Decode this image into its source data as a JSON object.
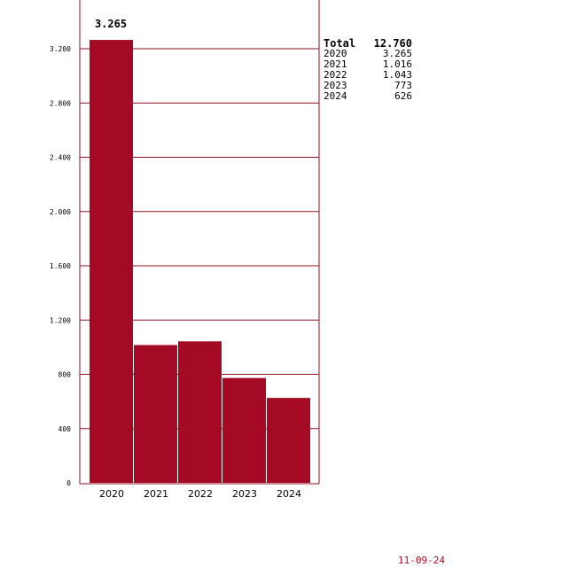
{
  "chart_data": {
    "type": "bar",
    "categories": [
      "2020",
      "2021",
      "2022",
      "2023",
      "2024"
    ],
    "values": [
      3265,
      1016,
      1043,
      773,
      626
    ],
    "value_labels": [
      "3.265",
      "1.016",
      "1.043",
      "773",
      "626"
    ],
    "highlight_label": "3.265",
    "ylim": [
      0,
      3570
    ],
    "yticks": [
      0,
      400,
      800,
      1200,
      1600,
      2000,
      2400,
      2800,
      3200
    ],
    "ytick_labels": [
      "0",
      "400",
      "800",
      "1.200",
      "1.600",
      "2.000",
      "2.400",
      "2.800",
      "3.200"
    ],
    "grid": true,
    "title": "",
    "xlabel": "",
    "ylabel": "",
    "legend": {
      "placement": "right",
      "total_label": "Total",
      "total_value": "12.760"
    },
    "colors": {
      "bar": "#a50a24",
      "axis": "#8b1020"
    }
  },
  "footer": {
    "date": "11-09-24"
  }
}
